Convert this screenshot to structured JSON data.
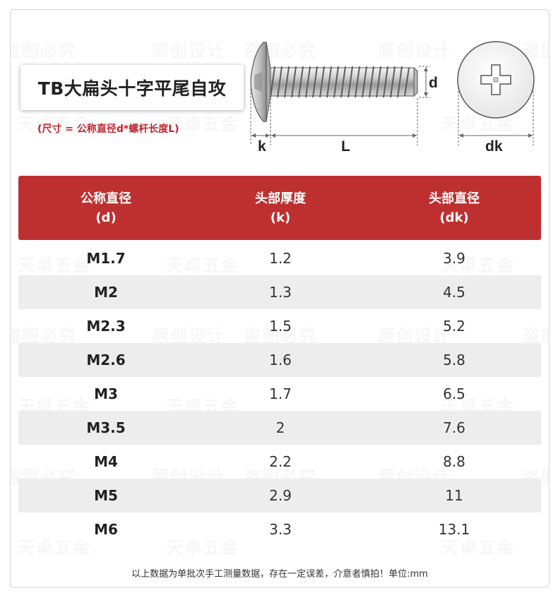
{
  "title": "TB大扁头十字平尾自攻",
  "formula": "(尺寸 = 公称直径d*螺杆长度L)",
  "diagram": {
    "label_k": "k",
    "label_L": "L",
    "label_d": "d",
    "label_dk": "dk"
  },
  "table": {
    "headers": [
      {
        "line1": "公称直径",
        "line2": "(d)"
      },
      {
        "line1": "头部厚度",
        "line2": "(k)"
      },
      {
        "line1": "头部直径",
        "line2": "(dk)"
      }
    ],
    "rows": [
      {
        "d": "M1.7",
        "k": "1.2",
        "dk": "3.9"
      },
      {
        "d": "M2",
        "k": "1.3",
        "dk": "4.5"
      },
      {
        "d": "M2.3",
        "k": "1.5",
        "dk": "5.2"
      },
      {
        "d": "M2.6",
        "k": "1.6",
        "dk": "5.8"
      },
      {
        "d": "M3",
        "k": "1.7",
        "dk": "6.5"
      },
      {
        "d": "M3.5",
        "k": "2",
        "dk": "7.6"
      },
      {
        "d": "M4",
        "k": "2.2",
        "dk": "8.8"
      },
      {
        "d": "M5",
        "k": "2.9",
        "dk": "11"
      },
      {
        "d": "M6",
        "k": "3.3",
        "dk": "13.1"
      }
    ]
  },
  "footer": "以上数据为单批次手工测量数据，存在一定误差，介意者慎拍！单位:mm",
  "watermarks": [
    "原创设计",
    "盗图必究",
    "天卓五金"
  ],
  "colors": {
    "header_bg": "#be3030",
    "accent_text": "#c0262d",
    "alt_row": "#ededed"
  }
}
